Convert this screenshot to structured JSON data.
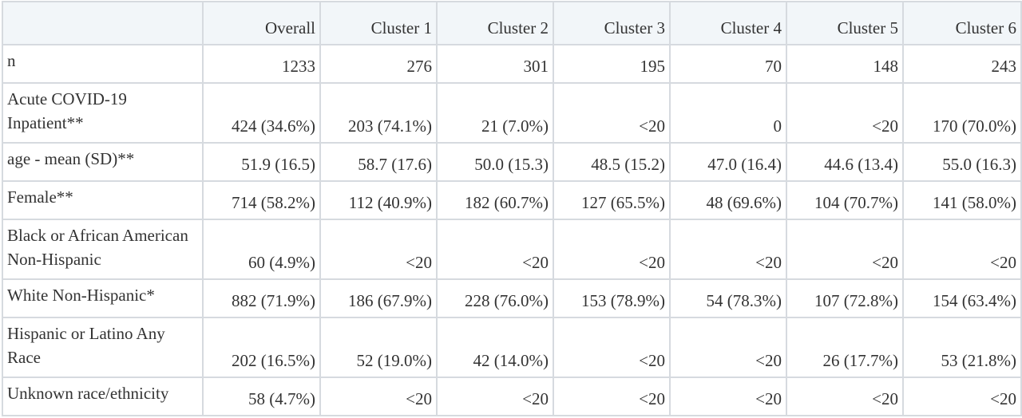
{
  "table": {
    "columns": [
      "Overall",
      "Cluster 1",
      "Cluster 2",
      "Cluster 3",
      "Cluster 4",
      "Cluster 5",
      "Cluster 6"
    ],
    "rows": [
      [
        "n",
        "1233",
        "276",
        "301",
        "195",
        "70",
        "148",
        "243"
      ],
      [
        "Acute COVID-19 Inpatient**",
        "424 (34.6%)",
        "203 (74.1%)",
        "21 (7.0%)",
        "<20",
        "0",
        "<20",
        "170 (70.0%)"
      ],
      [
        "age - mean (SD)**",
        "51.9 (16.5)",
        "58.7 (17.6)",
        "50.0 (15.3)",
        "48.5 (15.2)",
        "47.0 (16.4)",
        "44.6 (13.4)",
        "55.0 (16.3)"
      ],
      [
        "Female**",
        "714 (58.2%)",
        "112 (40.9%)",
        "182 (60.7%)",
        "127 (65.5%)",
        "48 (69.6%)",
        "104 (70.7%)",
        "141 (58.0%)"
      ],
      [
        "Black or African American Non-Hispanic",
        "60 (4.9%)",
        "<20",
        "<20",
        "<20",
        "<20",
        "<20",
        "<20"
      ],
      [
        "White Non-Hispanic*",
        "882 (71.9%)",
        "186 (67.9%)",
        "228 (76.0%)",
        "153 (78.9%)",
        "54 (78.3%)",
        "107 (72.8%)",
        "154 (63.4%)"
      ],
      [
        "Hispanic or Latino Any Race",
        "202 (16.5%)",
        "52 (19.0%)",
        "42 (14.0%)",
        "<20",
        "<20",
        "26 (17.7%)",
        "53 (21.8%)"
      ],
      [
        "Unknown race/ethnicity",
        "58 (4.7%)",
        "<20",
        "<20",
        "<20",
        "<20",
        "<20",
        "<20"
      ]
    ]
  }
}
